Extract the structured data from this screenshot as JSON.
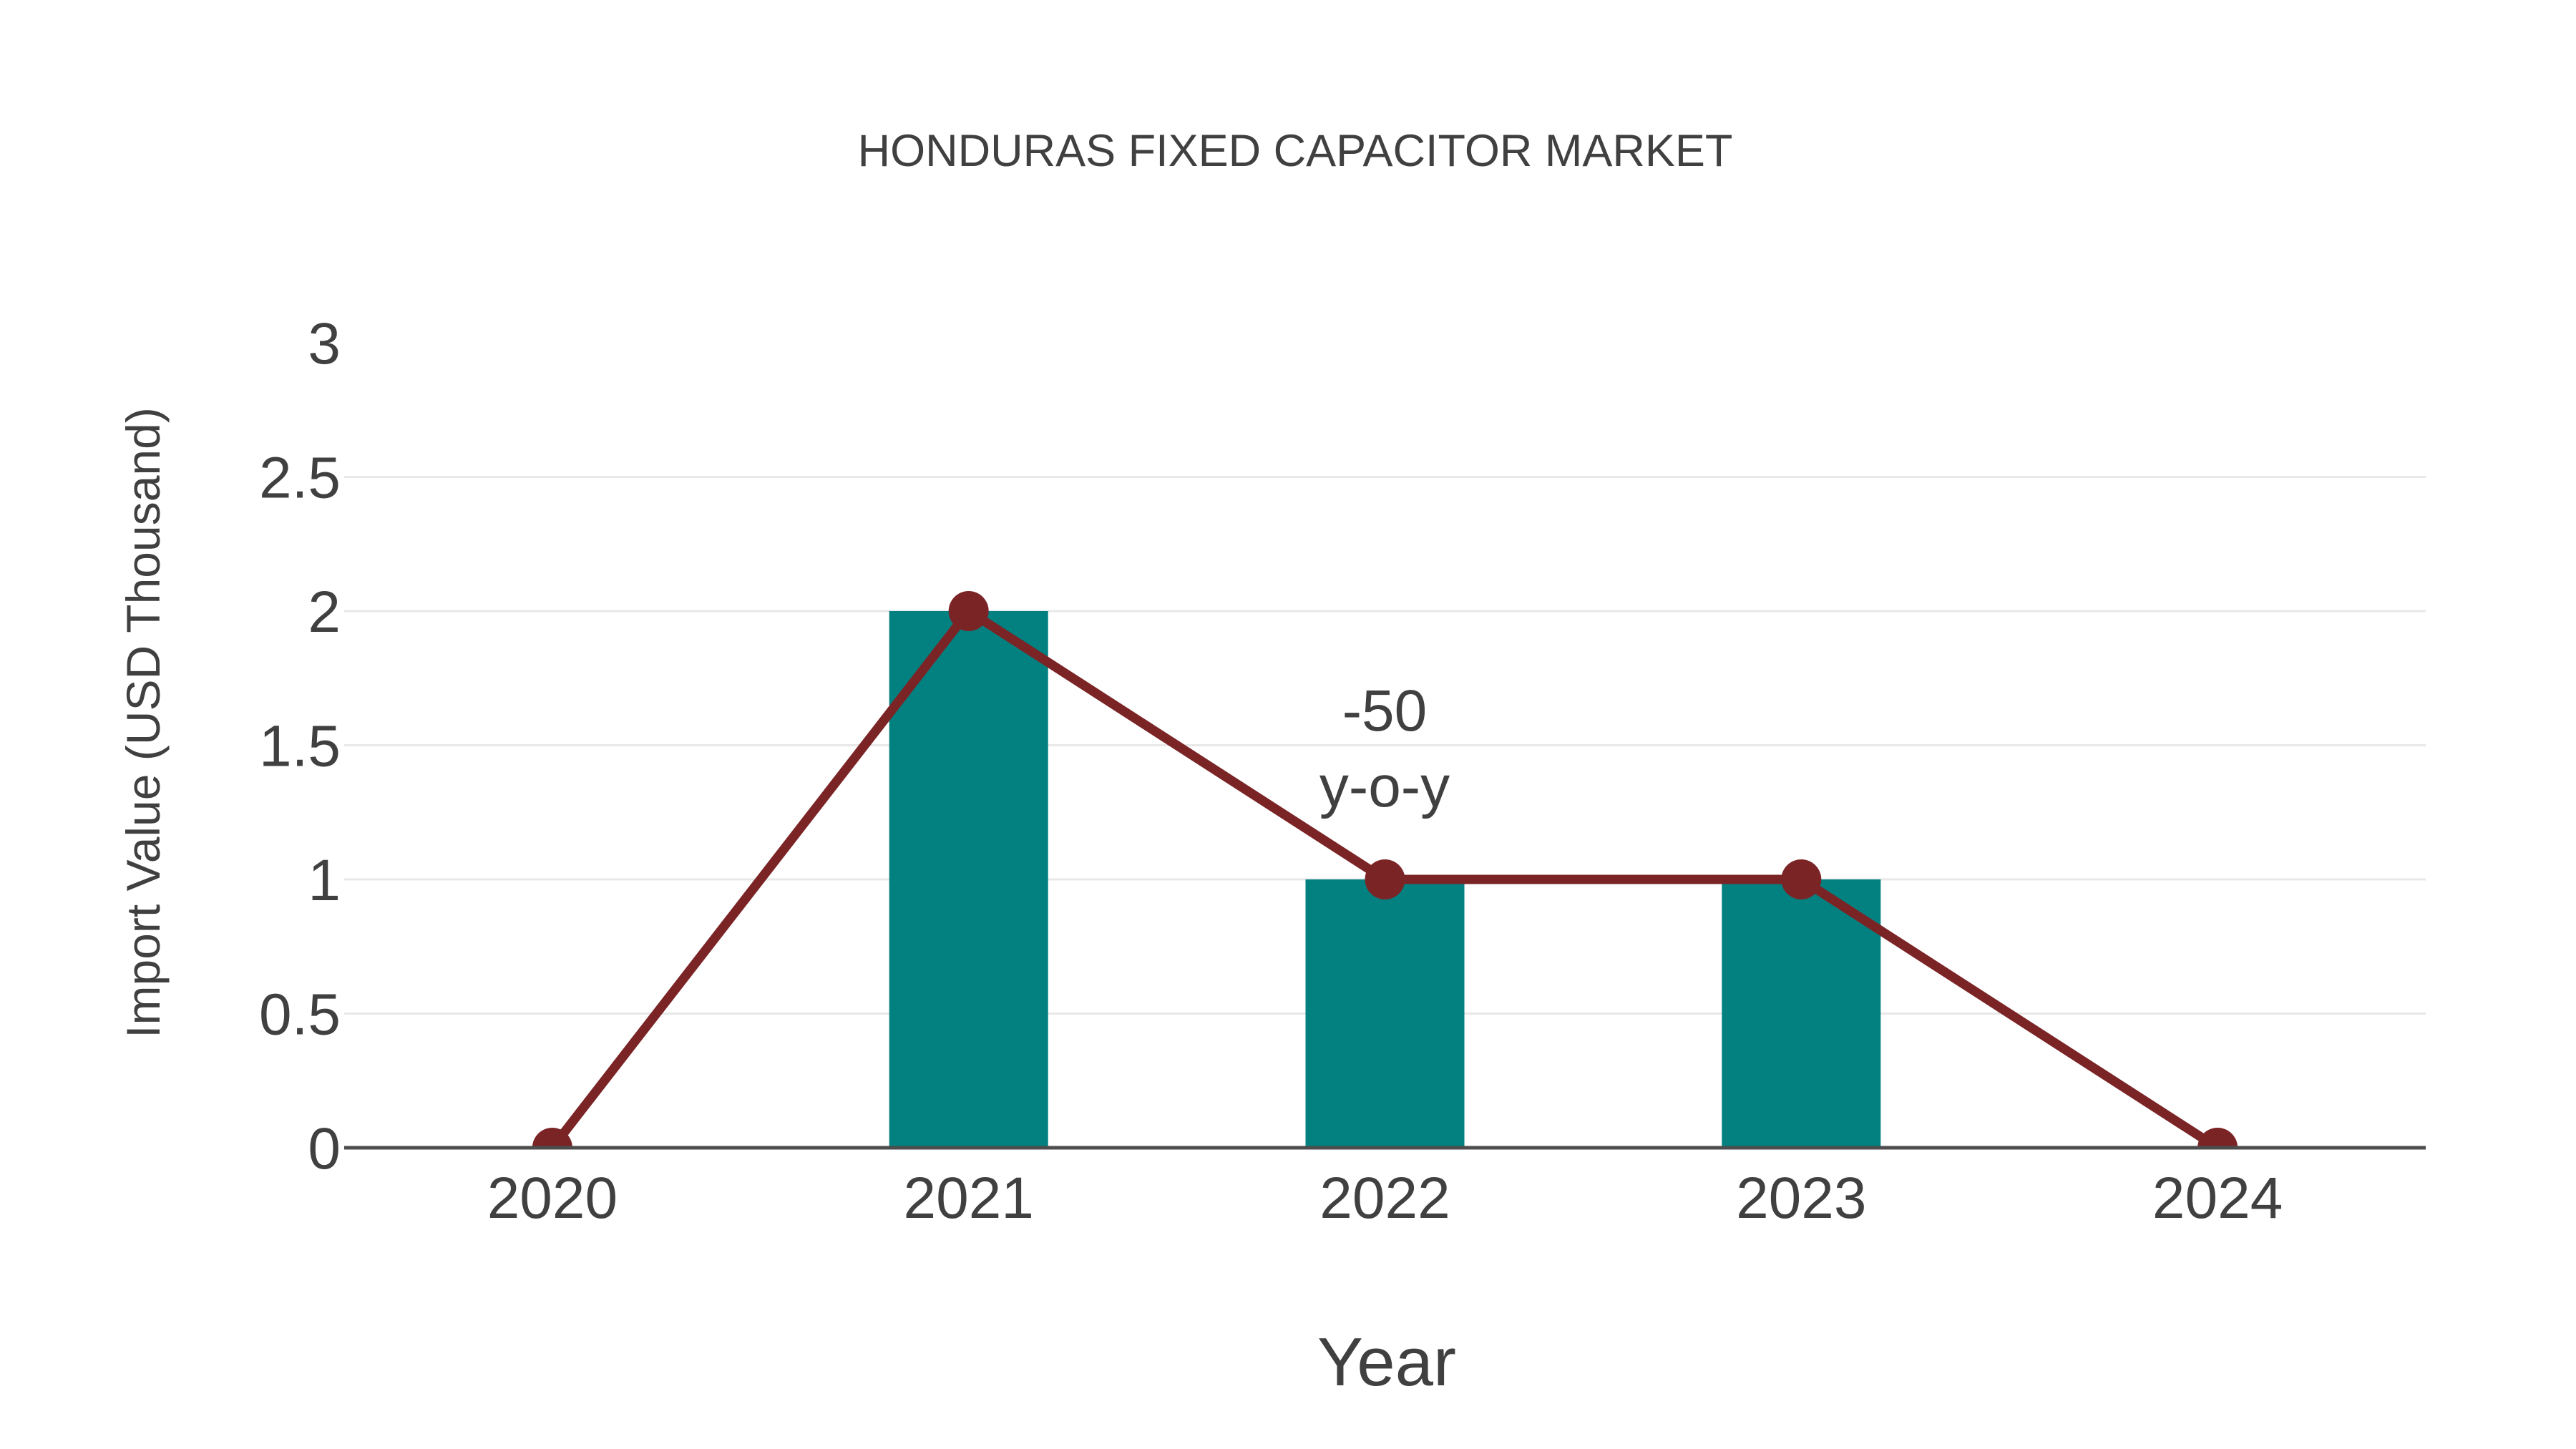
{
  "chart_data": {
    "type": "bar",
    "subtype": "bar-with-line-overlay",
    "title": "HONDURAS FIXED CAPACITOR MARKET",
    "xlabel": "Year",
    "ylabel": "Import Value (USD Thousand)",
    "categories": [
      "2020",
      "2021",
      "2022",
      "2023",
      "2024"
    ],
    "series": [
      {
        "name": "Import Value bars",
        "type": "bar",
        "values": [
          0,
          2,
          1,
          1,
          0
        ],
        "color": "#038080"
      },
      {
        "name": "Import Value trend line",
        "type": "line",
        "values": [
          0,
          2,
          1,
          1,
          0
        ],
        "color": "#7b2426"
      }
    ],
    "ylim": [
      0,
      3
    ],
    "yticks": [
      0,
      0.5,
      1,
      1.5,
      2,
      2.5,
      3
    ],
    "grid": true,
    "legend_position": "none",
    "annotation": {
      "line1": "-50",
      "line2": "y-o-y",
      "target_category": "2022"
    },
    "colors": {
      "background": "#ffffff",
      "grid": "#e8e8e8",
      "axis_line": "#4d4d4d",
      "text": "#404040"
    }
  }
}
